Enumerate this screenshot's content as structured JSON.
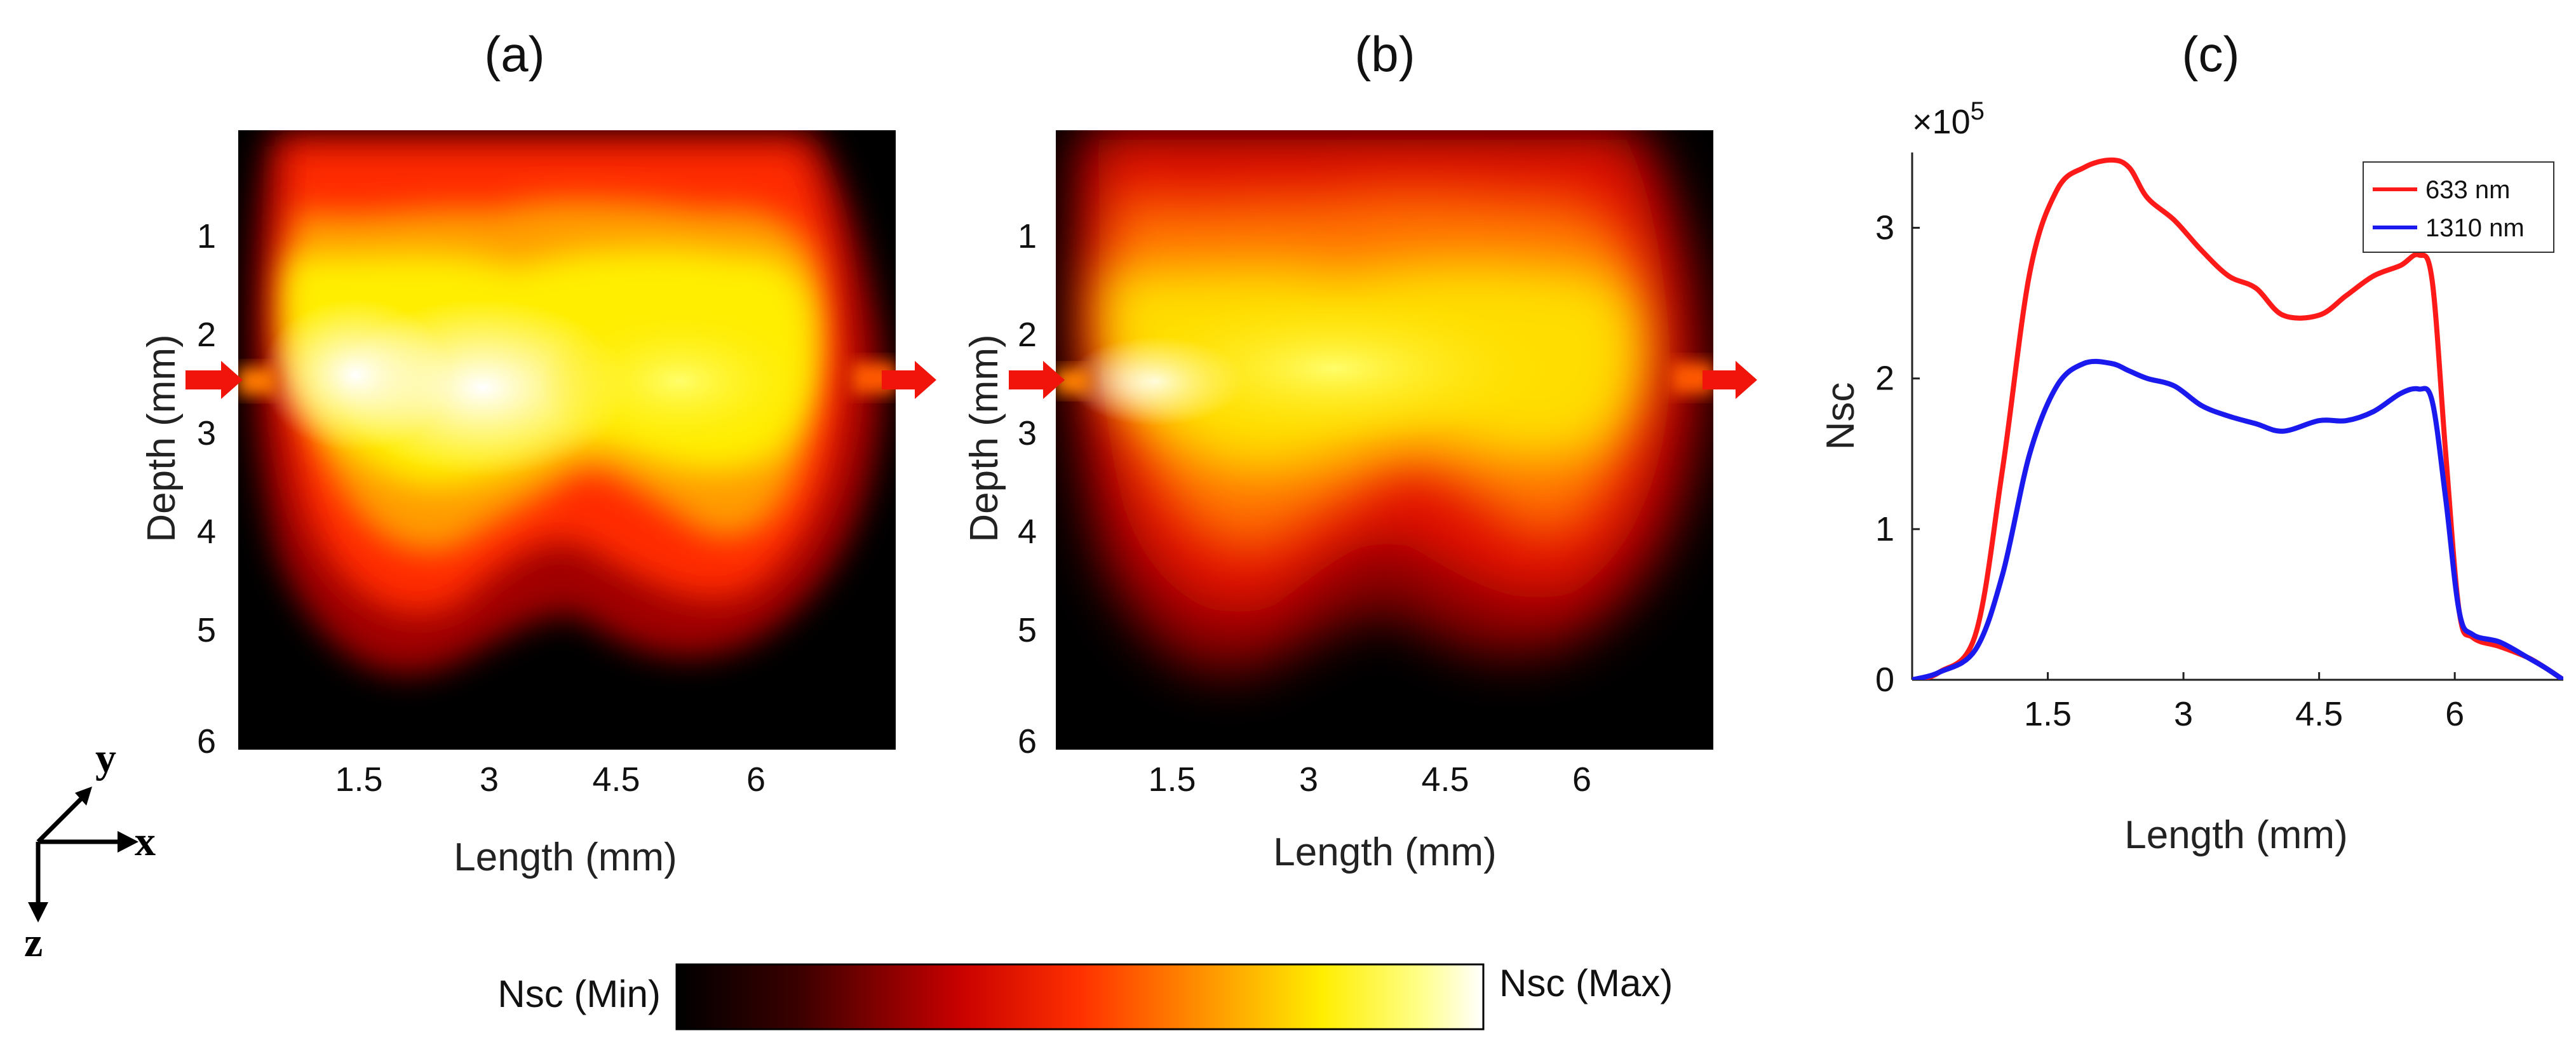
{
  "colors": {
    "red_arrow": "#f0140a",
    "series_633": "#ff1a1a",
    "series_1310": "#1a1aee",
    "axis": "#222222"
  },
  "heatmaps": [
    {
      "title": "(a)",
      "variant": "633",
      "xlabel": "Length (mm)",
      "ylabel": "Depth (mm)",
      "xticks": [
        "1.5",
        "3",
        "4.5",
        "6"
      ],
      "yticks": [
        "1",
        "2",
        "3",
        "4",
        "5",
        "6"
      ]
    },
    {
      "title": "(b)",
      "variant": "1310",
      "xlabel": "Length (mm)",
      "ylabel": "Depth (mm)",
      "xticks": [
        "1.5",
        "3",
        "4.5",
        "6"
      ],
      "yticks": [
        "1",
        "2",
        "3",
        "4",
        "5",
        "6"
      ]
    }
  ],
  "axes_indicator": {
    "x": "x",
    "y": "y",
    "z": "z"
  },
  "colorbar": {
    "min_label": "Nsc (Min)",
    "max_label": "Nsc (Max)"
  },
  "chart_data": {
    "type": "line",
    "title": "(c)",
    "xlabel": "Length (mm)",
    "ylabel": "Nsc",
    "exponent_label": "×10",
    "exponent_power": "5",
    "xlim": [
      0,
      7.2
    ],
    "ylim": [
      0,
      3.5
    ],
    "xticks": [
      "1.5",
      "3",
      "4.5",
      "6"
    ],
    "yticks": [
      "0",
      "1",
      "2",
      "3"
    ],
    "legend_position": "top-right",
    "series": [
      {
        "name": "633 nm",
        "x": [
          0,
          0.3,
          0.7,
          1.0,
          1.3,
          1.6,
          1.9,
          2.2,
          2.4,
          2.6,
          2.9,
          3.2,
          3.5,
          3.8,
          4.1,
          4.5,
          4.8,
          5.1,
          5.4,
          5.6,
          5.75,
          5.9,
          6.05,
          6.2,
          6.5,
          6.8,
          7.0,
          7.2
        ],
        "y": [
          0,
          0.05,
          0.3,
          1.4,
          2.7,
          3.25,
          3.4,
          3.45,
          3.4,
          3.2,
          3.05,
          2.85,
          2.68,
          2.6,
          2.42,
          2.42,
          2.55,
          2.68,
          2.75,
          2.82,
          2.65,
          1.5,
          0.45,
          0.28,
          0.22,
          0.15,
          0.08,
          0
        ]
      },
      {
        "name": "1310 nm",
        "x": [
          0,
          0.3,
          0.7,
          1.0,
          1.3,
          1.6,
          1.9,
          2.2,
          2.4,
          2.6,
          2.9,
          3.2,
          3.5,
          3.8,
          4.1,
          4.5,
          4.8,
          5.1,
          5.4,
          5.6,
          5.75,
          5.9,
          6.05,
          6.2,
          6.5,
          6.8,
          7.0,
          7.2
        ],
        "y": [
          0,
          0.05,
          0.2,
          0.7,
          1.5,
          1.95,
          2.1,
          2.1,
          2.05,
          2.0,
          1.95,
          1.82,
          1.75,
          1.7,
          1.65,
          1.72,
          1.72,
          1.78,
          1.9,
          1.93,
          1.85,
          1.2,
          0.45,
          0.3,
          0.25,
          0.15,
          0.08,
          0
        ]
      }
    ]
  }
}
